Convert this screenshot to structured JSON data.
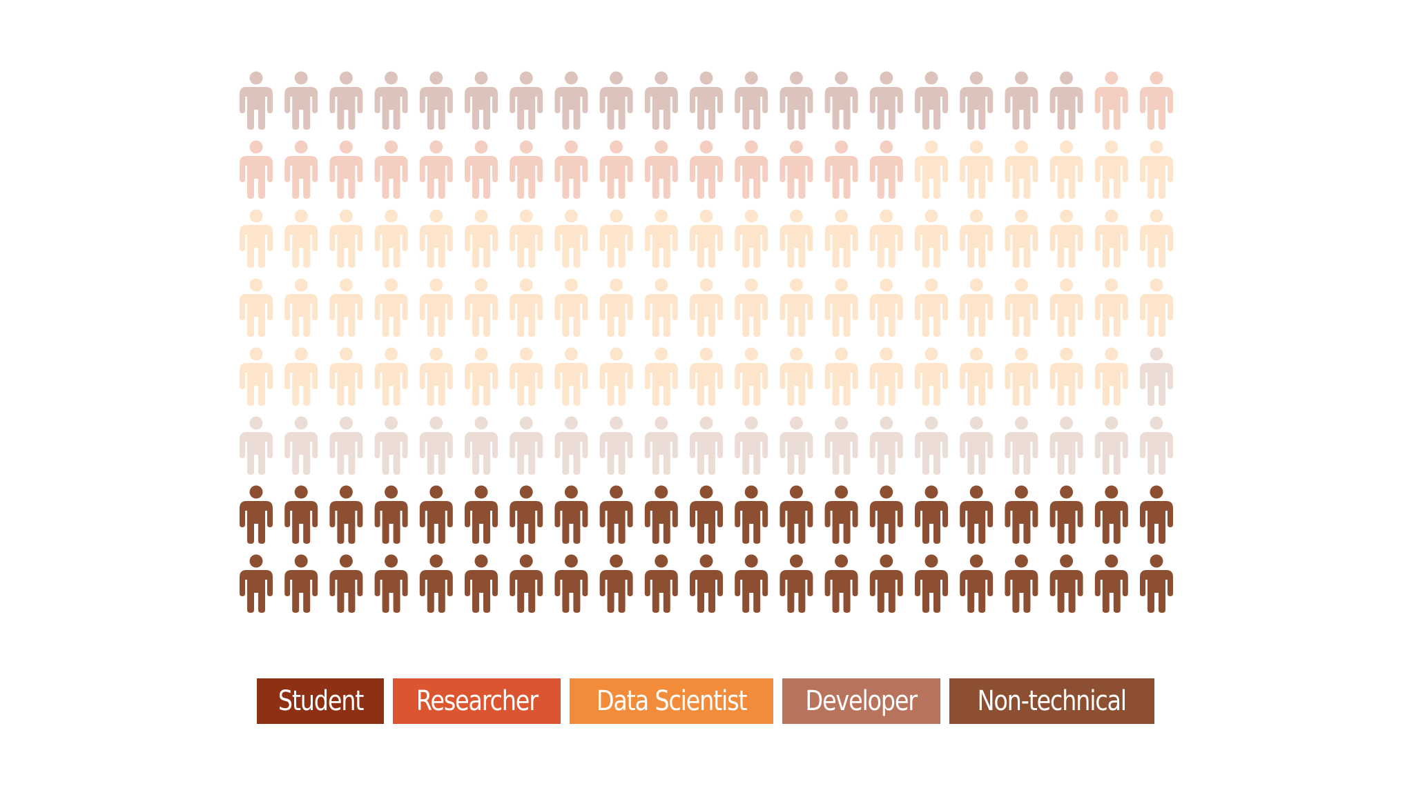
{
  "chart_data": {
    "type": "pictogram",
    "units_total": 168,
    "columns": 21,
    "rows": 8,
    "categories": [
      {
        "name": "Student",
        "units": 19,
        "legend_color": "#8e3013",
        "icon_color": "#dcc4bd"
      },
      {
        "name": "Researcher",
        "units": 17,
        "legend_color": "#db5530",
        "icon_color": "#f5cec2"
      },
      {
        "name": "Data Scientist",
        "units": 68,
        "legend_color": "#f28c3a",
        "icon_color": "#fde5cc"
      },
      {
        "name": "Developer",
        "units": 22,
        "legend_color": "#b8735c",
        "icon_color": "#ecdcd6"
      },
      {
        "name": "Non-technical",
        "units": 42,
        "legend_color": "#8c4f32",
        "icon_color": "#8c4f32"
      }
    ],
    "legend_placement": "bottom"
  }
}
